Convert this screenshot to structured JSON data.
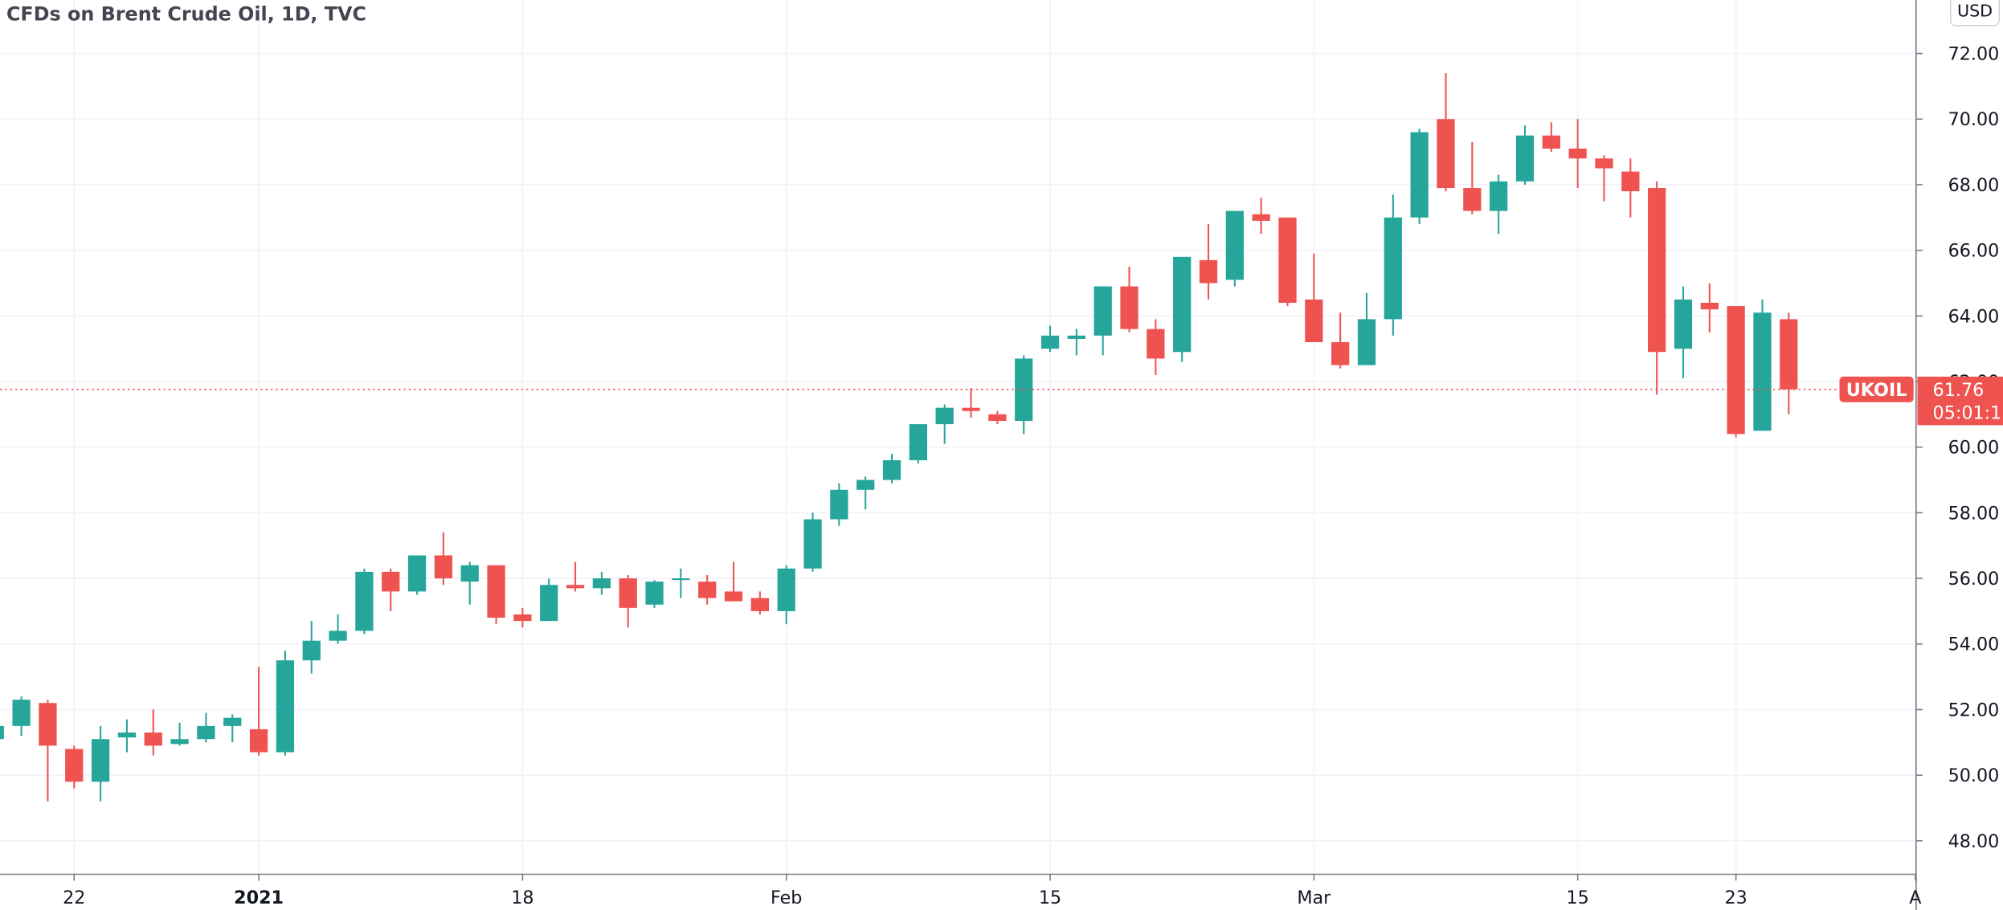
{
  "chart_data": {
    "type": "candlestick",
    "title": "CFDs on Brent Crude Oil, 1D, TVC",
    "currency": "USD",
    "symbol": "UKOIL",
    "last_price": 61.76,
    "countdown": "05:01:1",
    "up_color": "#26a69a",
    "down_color": "#ef5350",
    "grid": true,
    "x": [
      0,
      1,
      2,
      3,
      4,
      5,
      6,
      7,
      8,
      9,
      10,
      11,
      12,
      13,
      14,
      15,
      16,
      17,
      18,
      19,
      20,
      21,
      22,
      23,
      24,
      25,
      26,
      27,
      28,
      29,
      30,
      31,
      32,
      33,
      34,
      35,
      36,
      37,
      38,
      39,
      40,
      41,
      42,
      43,
      44,
      45,
      46,
      47,
      48,
      49,
      50,
      51,
      52,
      53,
      54,
      55,
      56,
      57,
      58,
      59,
      60,
      61,
      62,
      63,
      64,
      65,
      66,
      67,
      68
    ],
    "open": [
      51.1,
      51.5,
      52.2,
      50.8,
      49.8,
      51.15,
      51.3,
      50.95,
      51.1,
      51.5,
      51.4,
      50.7,
      53.5,
      54.1,
      54.4,
      56.2,
      55.6,
      56.7,
      55.9,
      56.4,
      54.9,
      54.7,
      55.8,
      55.7,
      56.0,
      55.2,
      55.95,
      55.9,
      55.6,
      55.4,
      55.0,
      56.3,
      57.8,
      58.7,
      59.0,
      59.6,
      60.7,
      61.2,
      61.0,
      60.8,
      63.0,
      63.3,
      63.4,
      64.9,
      63.6,
      62.9,
      65.7,
      65.1,
      67.1,
      67.0,
      64.5,
      63.2,
      62.5,
      63.9,
      67.0,
      70.0,
      67.9,
      67.2,
      68.1,
      69.5,
      69.1,
      68.8,
      68.4,
      67.9,
      63.0,
      64.4,
      64.3,
      60.5,
      63.9
    ],
    "high": [
      51.6,
      52.4,
      52.3,
      50.9,
      51.5,
      51.7,
      52.0,
      51.6,
      51.9,
      51.85,
      53.3,
      53.8,
      54.7,
      54.9,
      56.3,
      56.3,
      56.7,
      57.4,
      56.5,
      56.4,
      55.1,
      56.0,
      56.5,
      56.2,
      56.1,
      55.95,
      56.3,
      56.1,
      56.5,
      55.6,
      56.4,
      58.0,
      58.9,
      59.1,
      59.8,
      60.7,
      61.3,
      61.8,
      61.1,
      62.8,
      63.7,
      63.6,
      64.9,
      65.5,
      63.9,
      65.8,
      66.8,
      67.2,
      67.6,
      67.0,
      65.9,
      64.1,
      64.7,
      67.7,
      69.7,
      71.4,
      69.3,
      68.3,
      69.8,
      69.9,
      70.0,
      68.9,
      68.8,
      68.1,
      64.9,
      65.0,
      64.3,
      64.5,
      64.1
    ],
    "low": [
      51.0,
      51.2,
      49.2,
      49.6,
      49.2,
      50.7,
      50.6,
      50.9,
      51.0,
      51.0,
      50.6,
      50.6,
      53.1,
      54.0,
      54.3,
      55.0,
      55.5,
      55.8,
      55.2,
      54.6,
      54.5,
      54.7,
      55.6,
      55.5,
      54.5,
      55.1,
      55.4,
      55.2,
      55.3,
      54.9,
      54.6,
      56.2,
      57.6,
      58.1,
      58.9,
      59.5,
      60.1,
      60.9,
      60.7,
      60.4,
      62.9,
      62.8,
      62.8,
      63.5,
      62.2,
      62.6,
      64.5,
      64.9,
      66.5,
      64.3,
      63.2,
      62.4,
      62.5,
      63.4,
      66.8,
      67.8,
      67.1,
      66.5,
      68.0,
      69.0,
      67.9,
      67.5,
      67.0,
      61.6,
      62.1,
      63.5,
      60.3,
      60.5,
      61.0
    ],
    "close": [
      51.5,
      52.3,
      50.9,
      49.8,
      51.1,
      51.3,
      50.9,
      51.1,
      51.5,
      51.75,
      50.7,
      53.5,
      54.1,
      54.4,
      56.2,
      55.6,
      56.7,
      56.0,
      56.4,
      54.8,
      54.7,
      55.8,
      55.7,
      56.0,
      55.1,
      55.9,
      56.0,
      55.4,
      55.3,
      55.0,
      56.3,
      57.8,
      58.7,
      59.0,
      59.6,
      60.7,
      61.2,
      61.1,
      60.8,
      62.7,
      63.4,
      63.4,
      64.9,
      63.6,
      62.7,
      65.8,
      65.0,
      67.2,
      66.9,
      64.4,
      63.2,
      62.5,
      63.9,
      67.0,
      69.6,
      67.9,
      67.2,
      68.1,
      69.5,
      69.1,
      68.8,
      68.5,
      67.8,
      62.9,
      64.5,
      64.2,
      60.4,
      64.1,
      61.76
    ],
    "xlim": [
      0.19,
      72.83
    ],
    "xticks": [
      {
        "value": 3,
        "label": "22"
      },
      {
        "value": 10,
        "label": "2021"
      },
      {
        "value": 20,
        "label": "18"
      },
      {
        "value": 30,
        "label": "Feb"
      },
      {
        "value": 40,
        "label": "15"
      },
      {
        "value": 50,
        "label": "Mar"
      },
      {
        "value": 60,
        "label": "15"
      },
      {
        "value": 66,
        "label": "23"
      },
      {
        "value": 72.8,
        "label": "A"
      }
    ],
    "ylim": [
      46.98,
      73.63
    ],
    "yticks": [
      {
        "value": 48,
        "label": "48.00"
      },
      {
        "value": 50,
        "label": "50.00"
      },
      {
        "value": 52,
        "label": "52.00"
      },
      {
        "value": 54,
        "label": "54.00"
      },
      {
        "value": 56,
        "label": "56.00"
      },
      {
        "value": 58,
        "label": "58.00"
      },
      {
        "value": 60,
        "label": "60.00"
      },
      {
        "value": 62,
        "label": "62.00"
      },
      {
        "value": 64,
        "label": "64.00"
      },
      {
        "value": 66,
        "label": "66.00"
      },
      {
        "value": 68,
        "label": "68.00"
      },
      {
        "value": 70,
        "label": "70.00"
      },
      {
        "value": 72,
        "label": "72.00"
      }
    ]
  }
}
